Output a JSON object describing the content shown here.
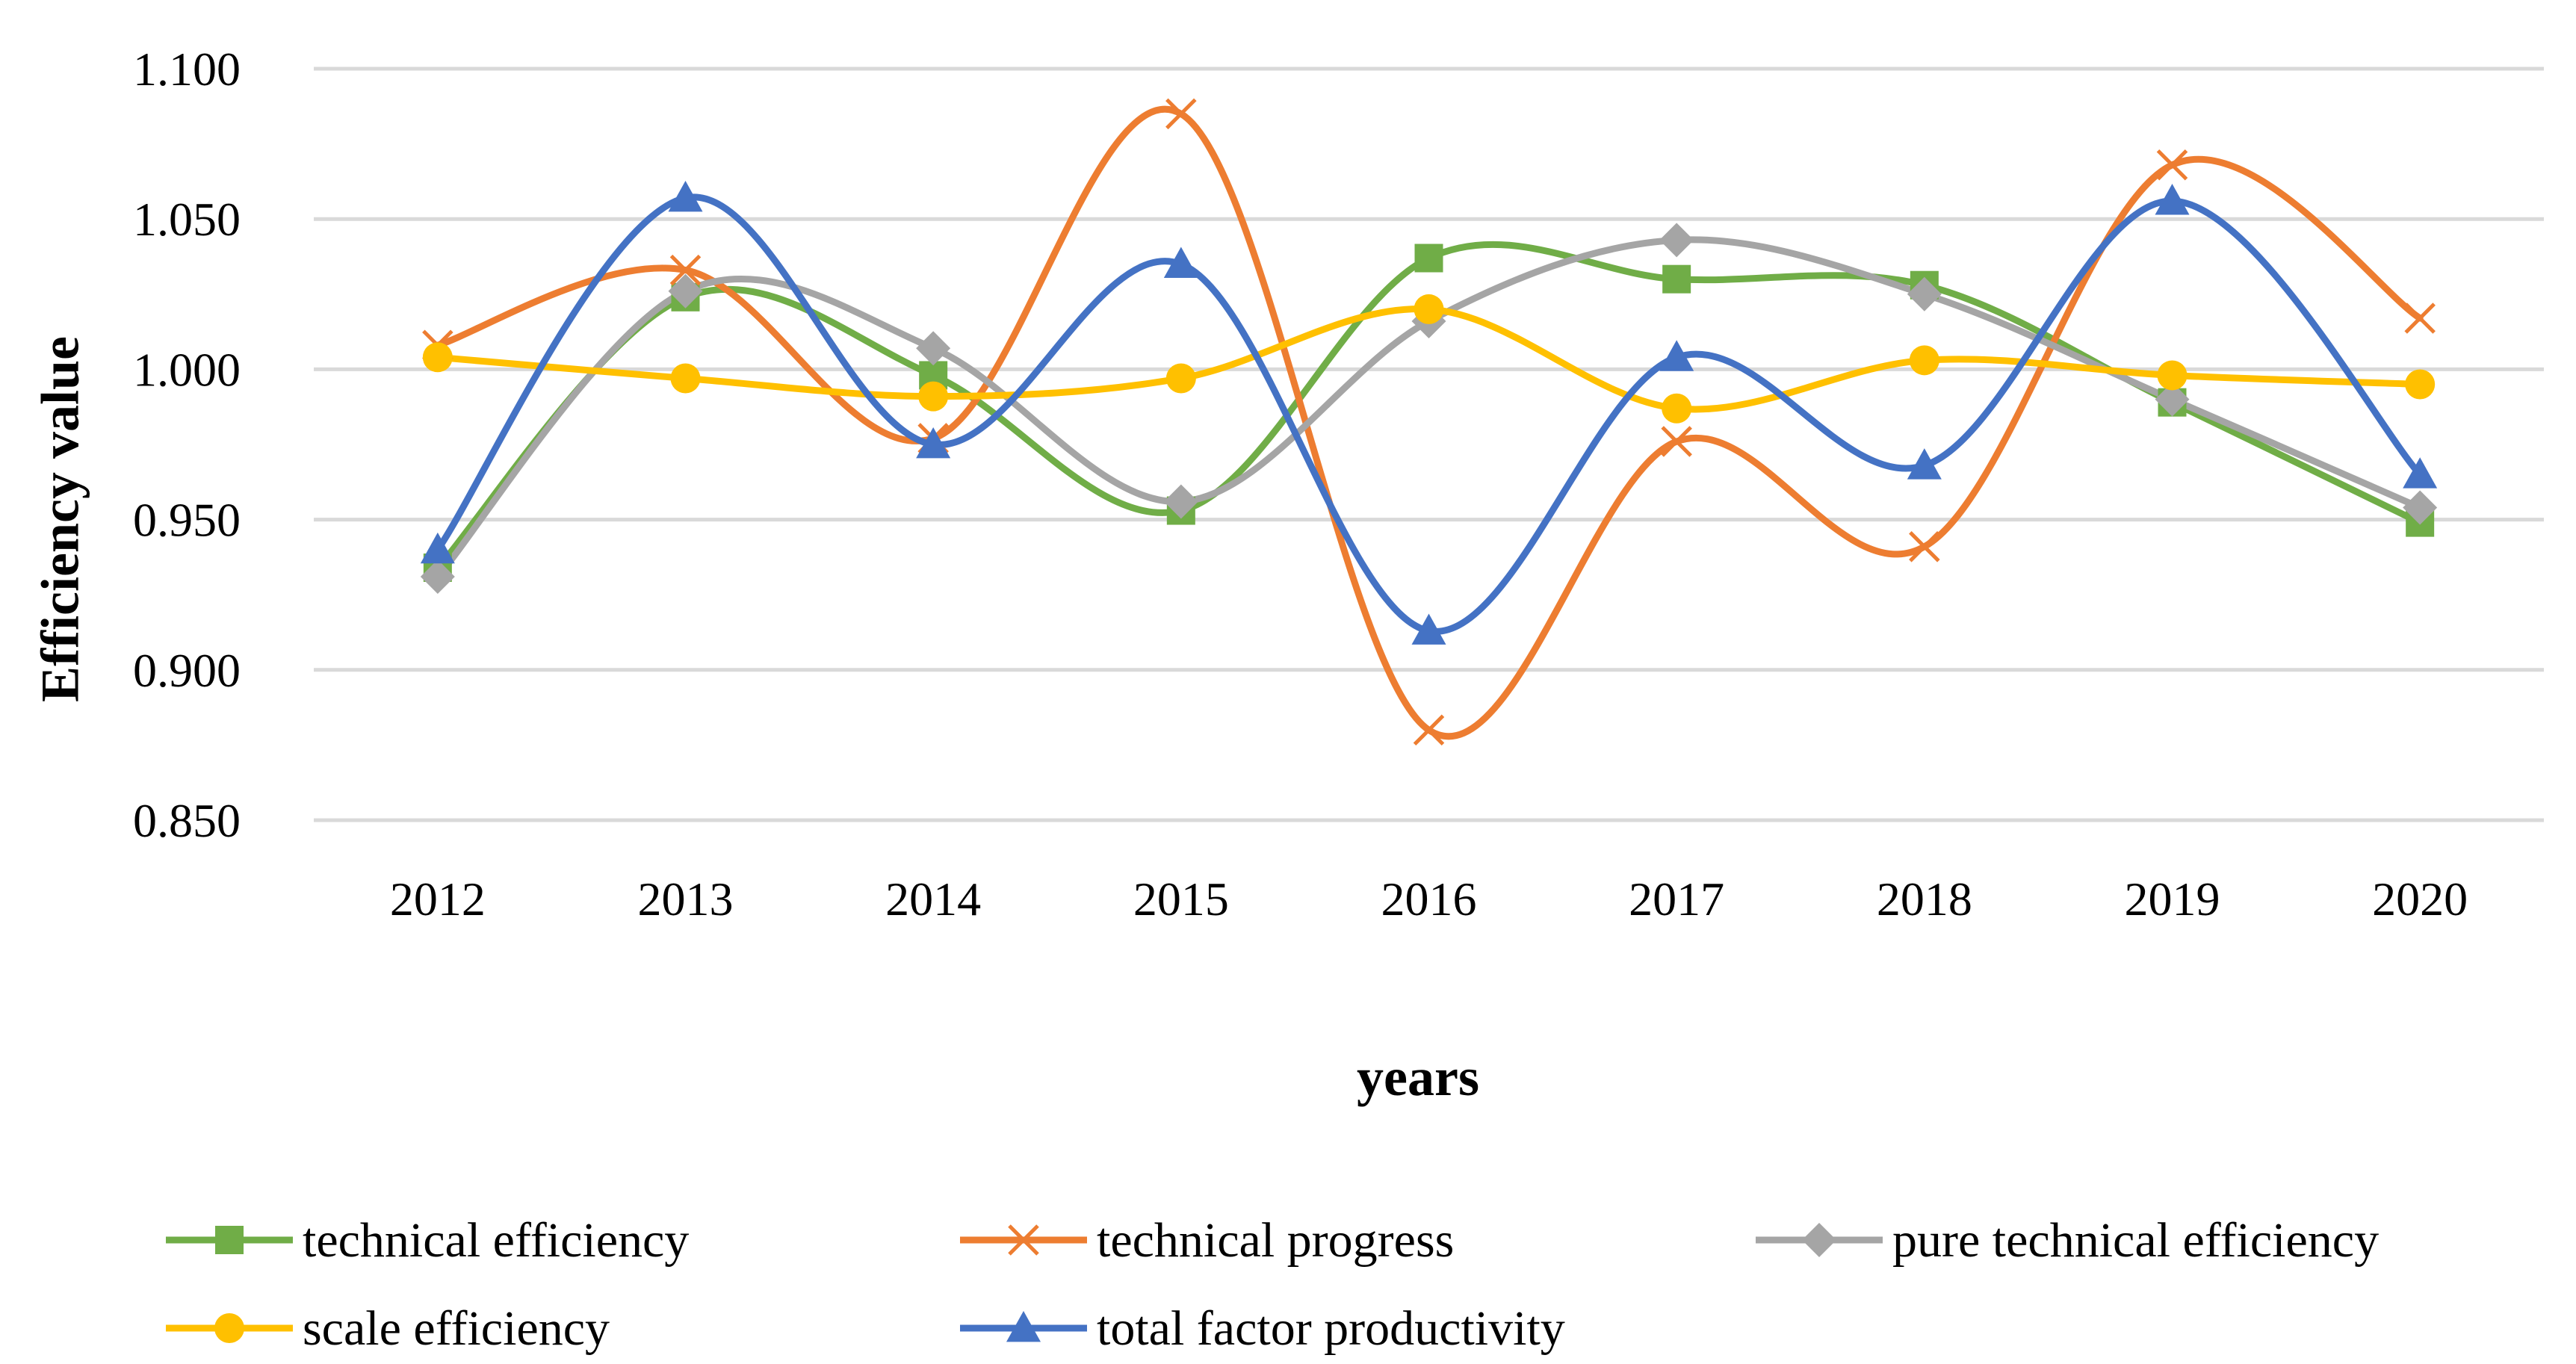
{
  "chart_data": {
    "type": "line",
    "title": "",
    "xlabel": "years",
    "ylabel": "Efficiency value",
    "categories": [
      "2012",
      "2013",
      "2014",
      "2015",
      "2016",
      "2017",
      "2018",
      "2019",
      "2020"
    ],
    "ylim": [
      0.85,
      1.1
    ],
    "yticks": [
      0.85,
      0.9,
      0.95,
      1.0,
      1.05,
      1.1
    ],
    "ytick_labels": [
      "0.850",
      "0.900",
      "0.950",
      "1.000",
      "1.050",
      "1.100"
    ],
    "grid": true,
    "smooth": true,
    "legend_position": "bottom",
    "series": [
      {
        "name": "technical efficiency",
        "color": "#70AD47",
        "marker": "square",
        "values": [
          0.934,
          1.024,
          0.998,
          0.953,
          1.037,
          1.03,
          1.028,
          0.989,
          0.949
        ]
      },
      {
        "name": "technical progress",
        "color": "#ED7D31",
        "marker": "x",
        "values": [
          1.008,
          1.033,
          0.977,
          1.085,
          0.88,
          0.976,
          0.941,
          1.068,
          1.017
        ]
      },
      {
        "name": "pure technical efficiency",
        "color": "#A5A5A5",
        "marker": "diamond",
        "values": [
          0.931,
          1.026,
          1.007,
          0.956,
          1.016,
          1.043,
          1.025,
          0.99,
          0.954
        ]
      },
      {
        "name": "scale efficiency",
        "color": "#FFC000",
        "marker": "circle",
        "values": [
          1.004,
          0.997,
          0.991,
          0.997,
          1.02,
          0.987,
          1.003,
          0.998,
          0.995
        ]
      },
      {
        "name": "total factor productivity",
        "color": "#4472C4",
        "marker": "triangle",
        "values": [
          0.94,
          1.057,
          0.975,
          1.035,
          0.913,
          1.004,
          0.968,
          1.056,
          0.965
        ]
      }
    ]
  }
}
